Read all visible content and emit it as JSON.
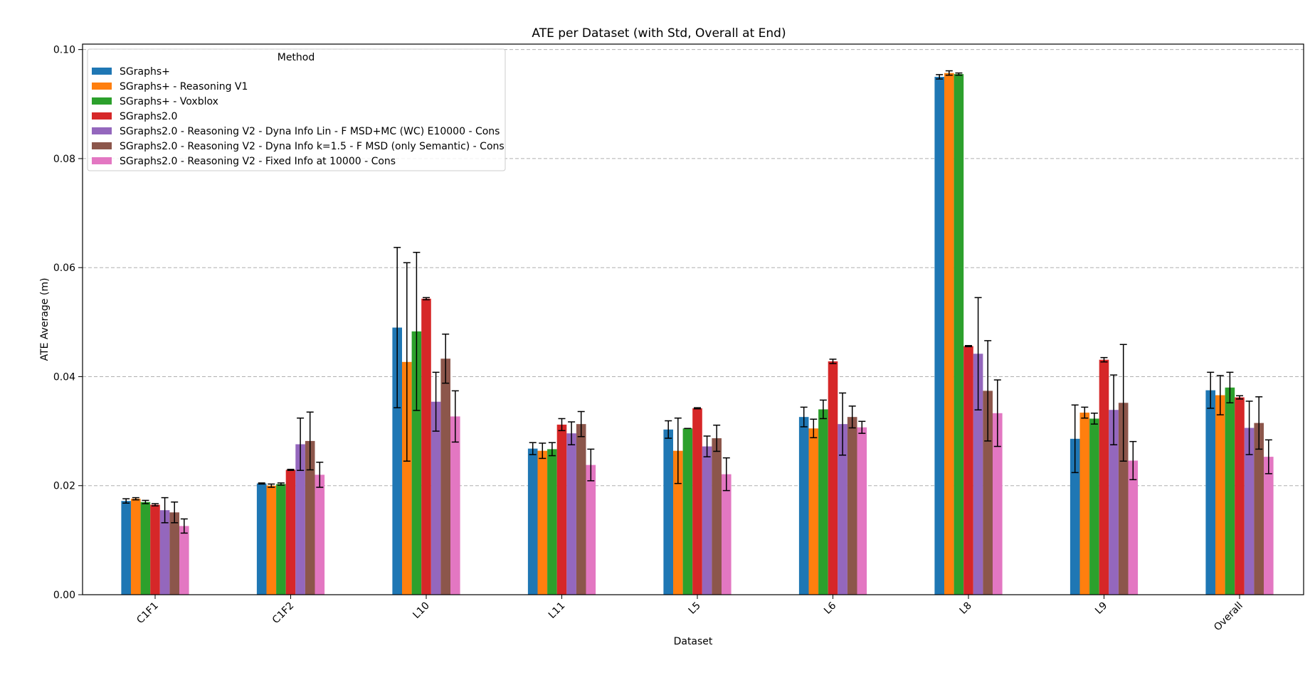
{
  "chart_data": {
    "type": "bar",
    "title": "ATE per Dataset (with Std, Overall at End)",
    "xlabel": "Dataset",
    "ylabel": "ATE Average (m)",
    "ylim": [
      0,
      0.101
    ],
    "yticks": [
      "0.00",
      "0.02",
      "0.04",
      "0.06",
      "0.08",
      "0.10"
    ],
    "grid": "y-dashed",
    "legend_title": "Method",
    "legend_position": "top-left",
    "categories": [
      "C1F1",
      "C1F2",
      "L10",
      "L11",
      "L5",
      "L6",
      "L8",
      "L9",
      "Overall"
    ],
    "series": [
      {
        "name": "SGraphs+",
        "color": "#1f77b4",
        "values": [
          0.0172,
          0.0204,
          0.049,
          0.0268,
          0.0303,
          0.0326,
          0.095,
          0.0286,
          0.0375
        ],
        "errors": [
          0.0004,
          0.0001,
          0.0147,
          0.0011,
          0.0016,
          0.0018,
          0.0004,
          0.0062,
          0.0033
        ]
      },
      {
        "name": "SGraphs+ - Reasoning V1",
        "color": "#ff7f0e",
        "values": [
          0.0176,
          0.02,
          0.0427,
          0.0264,
          0.0264,
          0.0305,
          0.0957,
          0.0334,
          0.0366
        ],
        "errors": [
          0.0002,
          0.0003,
          0.0182,
          0.0014,
          0.006,
          0.0017,
          0.0004,
          0.001,
          0.0036
        ]
      },
      {
        "name": "SGraphs+ - Voxblox",
        "color": "#2ca02c",
        "values": [
          0.017,
          0.0203,
          0.0483,
          0.0267,
          0.0305,
          0.034,
          0.0955,
          0.0323,
          0.038
        ],
        "errors": [
          0.0003,
          0.0002,
          0.0145,
          0.0012,
          0.0,
          0.0017,
          0.0002,
          0.001,
          0.0028
        ]
      },
      {
        "name": "SGraphs2.0",
        "color": "#d62728",
        "values": [
          0.0165,
          0.0229,
          0.0543,
          0.0312,
          0.0342,
          0.0428,
          0.0456,
          0.0431,
          0.0362
        ],
        "errors": [
          0.0002,
          0.0001,
          0.0002,
          0.0011,
          0.0001,
          0.0004,
          0.0001,
          0.0004,
          0.0003
        ]
      },
      {
        "name": "SGraphs2.0 - Reasoning V2 - Dyna Info Lin - F MSD+MC (WC) E10000 - Cons",
        "color": "#9467bd",
        "values": [
          0.0155,
          0.0276,
          0.0354,
          0.0296,
          0.0272,
          0.0313,
          0.0442,
          0.0339,
          0.0306
        ],
        "errors": [
          0.0023,
          0.0048,
          0.0054,
          0.0021,
          0.0019,
          0.0057,
          0.0103,
          0.0064,
          0.0049
        ]
      },
      {
        "name": "SGraphs2.0 - Reasoning V2 - Dyna Info k=1.5 - F MSD (only Semantic) - Cons",
        "color": "#8c564b",
        "values": [
          0.0151,
          0.0282,
          0.0433,
          0.0313,
          0.0287,
          0.0326,
          0.0374,
          0.0352,
          0.0315
        ],
        "errors": [
          0.0019,
          0.0053,
          0.0045,
          0.0023,
          0.0024,
          0.002,
          0.0092,
          0.0107,
          0.0048
        ]
      },
      {
        "name": "SGraphs2.0 - Reasoning V2 - Fixed Info at 10000 - Cons",
        "color": "#e377c2",
        "values": [
          0.0126,
          0.022,
          0.0327,
          0.0238,
          0.0221,
          0.0307,
          0.0333,
          0.0246,
          0.0253
        ],
        "errors": [
          0.0013,
          0.0023,
          0.0047,
          0.0029,
          0.003,
          0.0011,
          0.0061,
          0.0035,
          0.0031
        ]
      }
    ]
  }
}
